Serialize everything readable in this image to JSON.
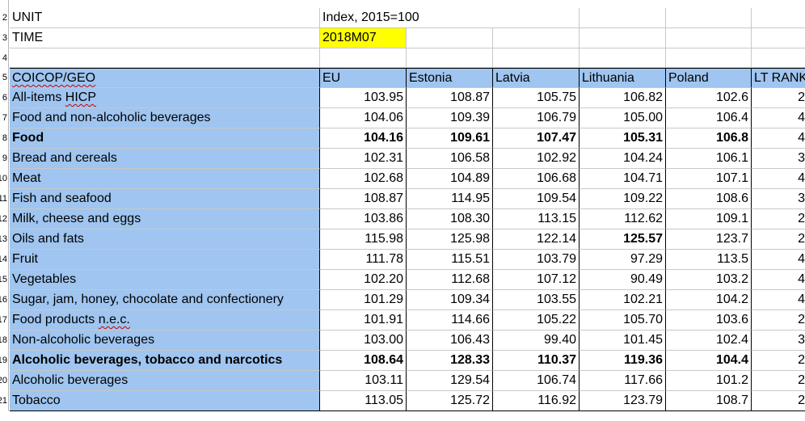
{
  "meta_rows": [
    {
      "row_num": "2",
      "label": "UNIT",
      "value": "Index, 2015=100"
    },
    {
      "row_num": "3",
      "label": "TIME",
      "value": "2018M07"
    }
  ],
  "blank_row_num": "4",
  "header": {
    "row_num": "5",
    "label_col": "COICOP/GEO",
    "columns": [
      "EU",
      "Estonia",
      "Latvia",
      "Lithuania",
      "Poland",
      "LT RANK"
    ]
  },
  "rows": [
    {
      "row_num": "6",
      "label": "All-items HICP",
      "values": [
        "103.95",
        "108.87",
        "105.75",
        "106.82",
        "102.6",
        "2"
      ],
      "bold": false
    },
    {
      "row_num": "7",
      "label": "Food and non-alcoholic beverages",
      "values": [
        "104.06",
        "109.39",
        "106.79",
        "105.00",
        "106.4",
        "4"
      ],
      "bold": false
    },
    {
      "row_num": "8",
      "label": "Food",
      "values": [
        "104.16",
        "109.61",
        "107.47",
        "105.31",
        "106.8",
        "4"
      ],
      "bold": true
    },
    {
      "row_num": "9",
      "label": "Bread and cereals",
      "values": [
        "102.31",
        "106.58",
        "102.92",
        "104.24",
        "106.1",
        "3"
      ],
      "bold": false
    },
    {
      "row_num": "10",
      "label": "Meat",
      "values": [
        "102.68",
        "104.89",
        "106.68",
        "104.71",
        "107.1",
        "4"
      ],
      "bold": false
    },
    {
      "row_num": "11",
      "label": "Fish and seafood",
      "values": [
        "108.87",
        "114.95",
        "109.54",
        "109.22",
        "108.6",
        "3"
      ],
      "bold": false
    },
    {
      "row_num": "12",
      "label": "Milk, cheese and eggs",
      "values": [
        "103.86",
        "108.30",
        "113.15",
        "112.62",
        "109.1",
        "2"
      ],
      "bold": false
    },
    {
      "row_num": "13",
      "label": "Oils and fats",
      "values": [
        "115.98",
        "125.98",
        "122.14",
        "125.57",
        "123.7",
        "2"
      ],
      "bold": false
    },
    {
      "row_num": "14",
      "label": "Fruit",
      "values": [
        "111.78",
        "115.51",
        "103.79",
        "97.29",
        "113.5",
        "4"
      ],
      "bold": false
    },
    {
      "row_num": "15",
      "label": "Vegetables",
      "values": [
        "102.20",
        "112.68",
        "107.12",
        "90.49",
        "103.2",
        "4"
      ],
      "bold": false
    },
    {
      "row_num": "16",
      "label": "Sugar, jam, honey, chocolate and confectionery",
      "values": [
        "101.29",
        "109.34",
        "103.55",
        "102.21",
        "104.2",
        "4"
      ],
      "bold": false
    },
    {
      "row_num": "17",
      "label": "Food products n.e.c.",
      "values": [
        "101.91",
        "114.66",
        "105.22",
        "105.70",
        "103.6",
        "2"
      ],
      "bold": false
    },
    {
      "row_num": "18",
      "label": "Non-alcoholic beverages",
      "values": [
        "103.00",
        "106.43",
        "99.40",
        "101.45",
        "102.4",
        "3"
      ],
      "bold": false
    },
    {
      "row_num": "19",
      "label": "Alcoholic beverages, tobacco and narcotics",
      "values": [
        "108.64",
        "128.33",
        "110.37",
        "119.36",
        "104.4",
        "2"
      ],
      "bold": true
    },
    {
      "row_num": "20",
      "label": "Alcoholic beverages",
      "values": [
        "103.11",
        "129.54",
        "106.74",
        "117.66",
        "101.2",
        "2"
      ],
      "bold": false
    },
    {
      "row_num": "21",
      "label": "Tobacco",
      "values": [
        "113.05",
        "125.72",
        "116.92",
        "123.79",
        "108.7",
        "2"
      ],
      "bold": false
    }
  ],
  "colors": {
    "label_fill": "#9fc5f0",
    "highlight": "#ffff00"
  }
}
